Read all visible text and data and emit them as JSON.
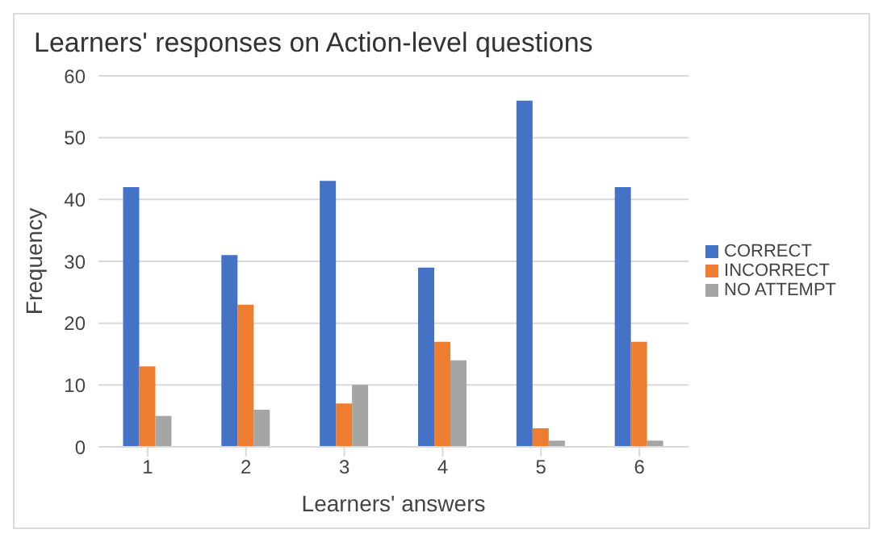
{
  "chart_data": {
    "type": "bar",
    "title": "Learners' responses on Action-level questions",
    "xlabel": "Learners' answers",
    "ylabel": "Frequency",
    "categories": [
      "1",
      "2",
      "3",
      "4",
      "5",
      "6"
    ],
    "series": [
      {
        "name": "CORRECT",
        "color": "#4472c4",
        "values": [
          42,
          31,
          43,
          29,
          56,
          42
        ]
      },
      {
        "name": "INCORRECT",
        "color": "#ed7d31",
        "values": [
          13,
          23,
          7,
          17,
          3,
          17
        ]
      },
      {
        "name": "NO ATTEMPT",
        "color": "#a5a5a5",
        "values": [
          5,
          6,
          10,
          14,
          1,
          1
        ]
      }
    ],
    "ylim": [
      0,
      60
    ],
    "yticks": [
      0,
      10,
      20,
      30,
      40,
      50,
      60
    ],
    "grid": "y",
    "legend": "right"
  }
}
